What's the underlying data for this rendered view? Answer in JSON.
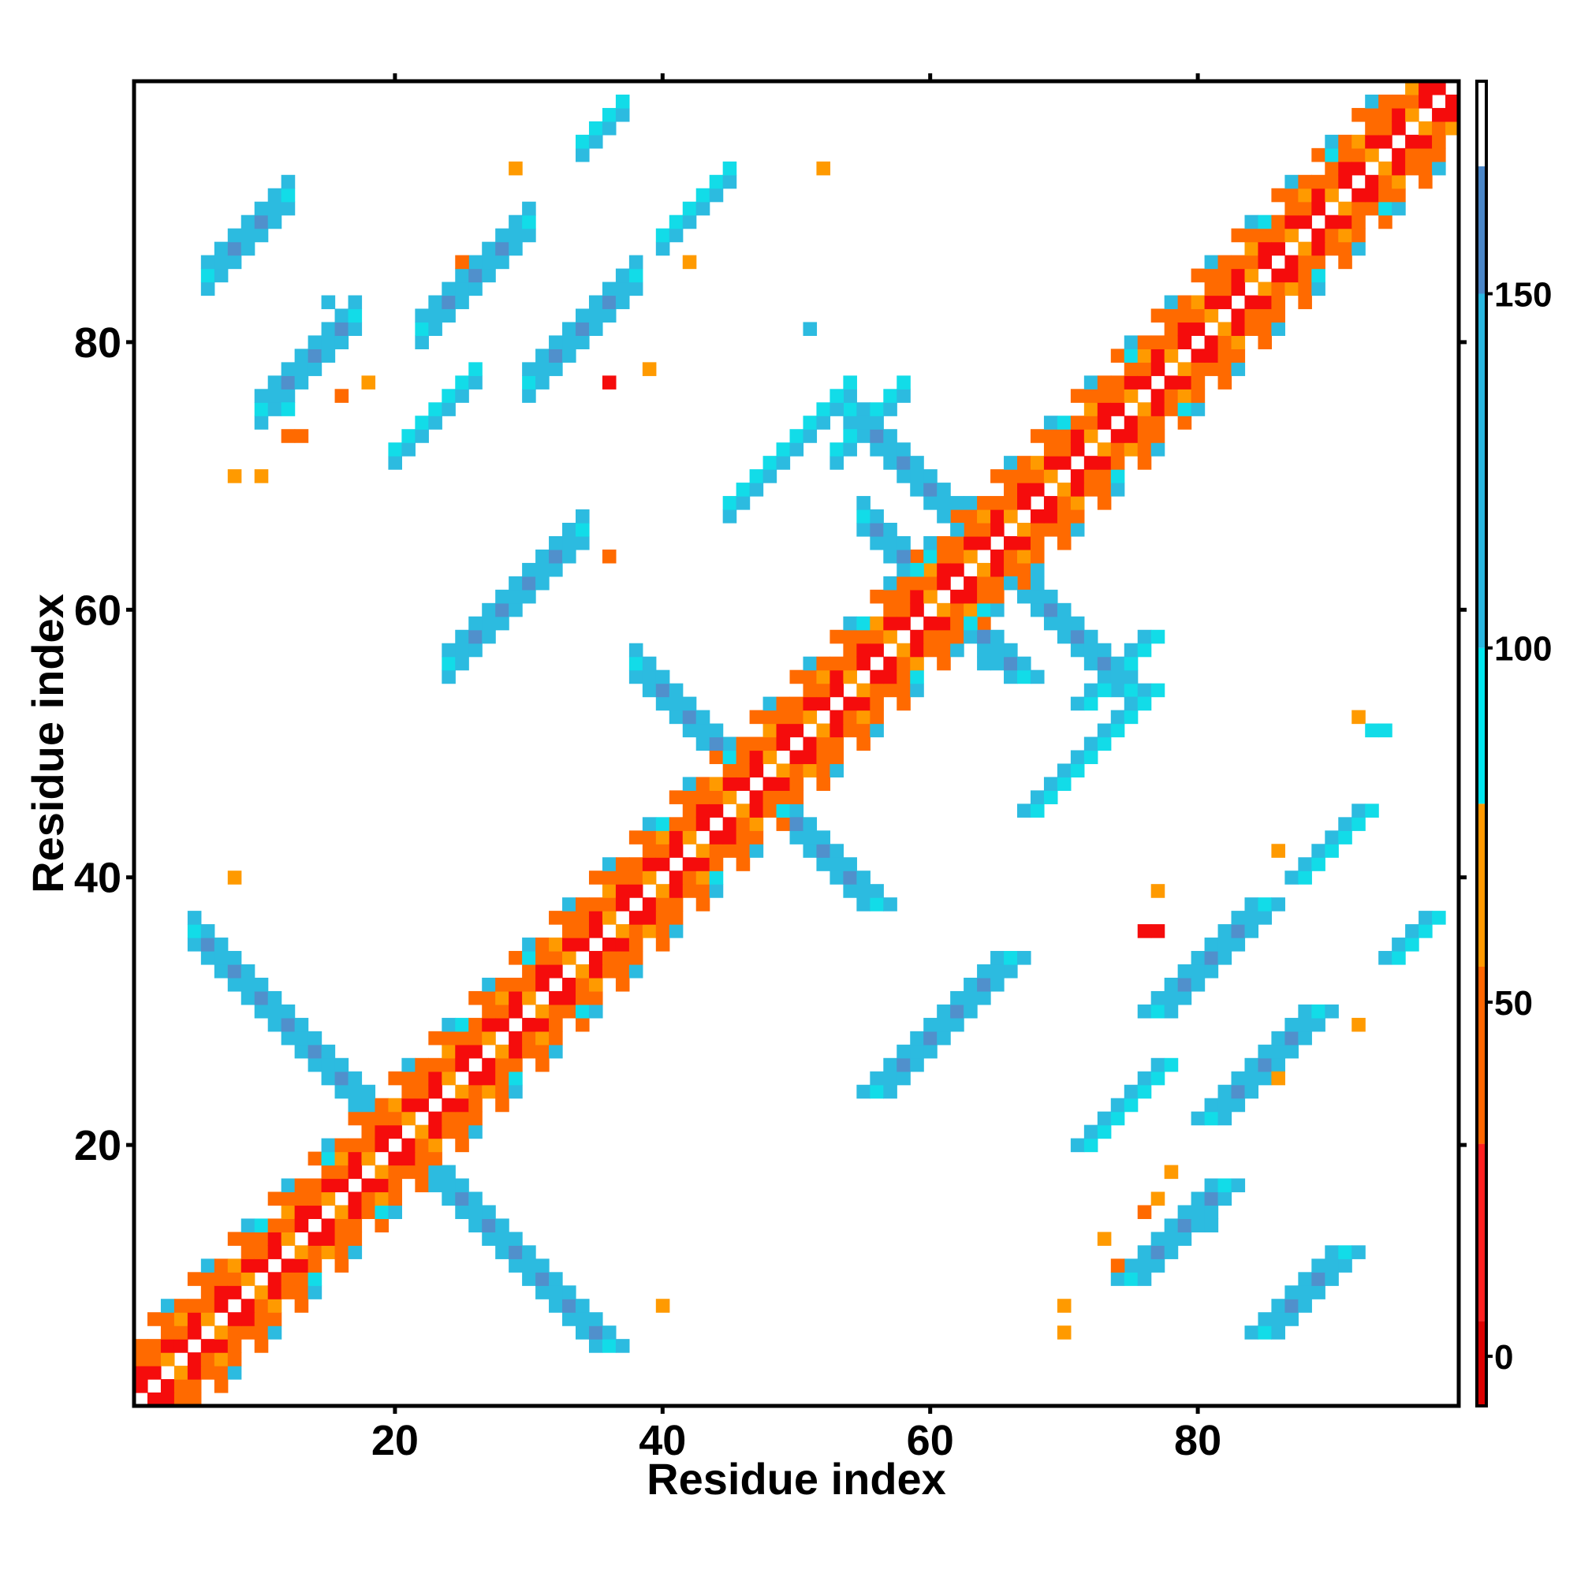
{
  "chart_data": {
    "type": "heatmap",
    "title": "",
    "xlabel": "Residue index",
    "ylabel": "Residue index",
    "xlim": [
      0.5,
      99.5
    ],
    "ylim": [
      0.5,
      99.5
    ],
    "x_ticks": [
      20,
      40,
      60,
      80
    ],
    "y_ticks": [
      20,
      40,
      60,
      80
    ],
    "colorbar": {
      "range": [
        -7,
        180
      ],
      "ticks": [
        0,
        50,
        100,
        150
      ],
      "bands": [
        {
          "from": -7,
          "to": 5,
          "color": "#dd0000"
        },
        {
          "from": 5,
          "to": 30,
          "color": "#ff2020"
        },
        {
          "from": 30,
          "to": 55,
          "color": "#ff6600"
        },
        {
          "from": 55,
          "to": 78,
          "color": "#ff9900"
        },
        {
          "from": 78,
          "to": 100,
          "color": "#00e5ee"
        },
        {
          "from": 100,
          "to": 150,
          "color": "#29b6e0"
        },
        {
          "from": 150,
          "to": 168,
          "color": "#4a86c8"
        },
        {
          "from": 168,
          "to": 180,
          "color": "#ffffff"
        }
      ]
    },
    "palette": {
      "R": "#f50c0c",
      "Q": "#ff6a00",
      "O": "#ff9a00",
      "C": "#12dce8",
      "L": "#2cbbe0",
      "B": "#5090cc"
    },
    "grid_rows_top_to_bottom": [
      "",
      "..........................................................................................OOR.",
      ".................................................................................COCC..OLQR",
      ".................................................................................QLCCCOQQ.",
      "......CC....................CL......C.............................................QQOC..LL.",
      "......CLLL..................CCLL....CC..........................................RQ.QQLLL..",
      ".......LLBL.........O........LBLL.....OO.......................................QRQQLQL...",
      "........LBBL..................LLLL..........................................Q.RQ.QR......",
      "........LBBBL.........................................................C.LRQRQRQLL.......",
      "..........LBBO...............................................CCCQQCQRQC.LC.............",
      "..........QQLBL.......................................................CLQQQR.QLCL.........",
      "..........OOL........Q......Q......................................QQ.RQLLRQQ.............",
      "...........................................................QQQ...Q.RQRQQC...............",
      "..............CL.L..........................................QOOQ.RQRRCLL.................",
      "..................................................L.C....................................",
      "......................O...............................LC..............................",
      "..................QQO........C............................QLLCQ......QQCL..............",
      "..................CLBLL......................................................",
      "..................................................CLLLLBB.Q.........RRQQR.....",
      ".........................R.......................................................",
      "..........OC.....R....Q.QLBBL......................................RRR...........",
      ".....O.O.....................................................QRRQQ............"
    ],
    "note": "Symmetric contact map of residue index vs residue index; values encoded by colorbar."
  }
}
